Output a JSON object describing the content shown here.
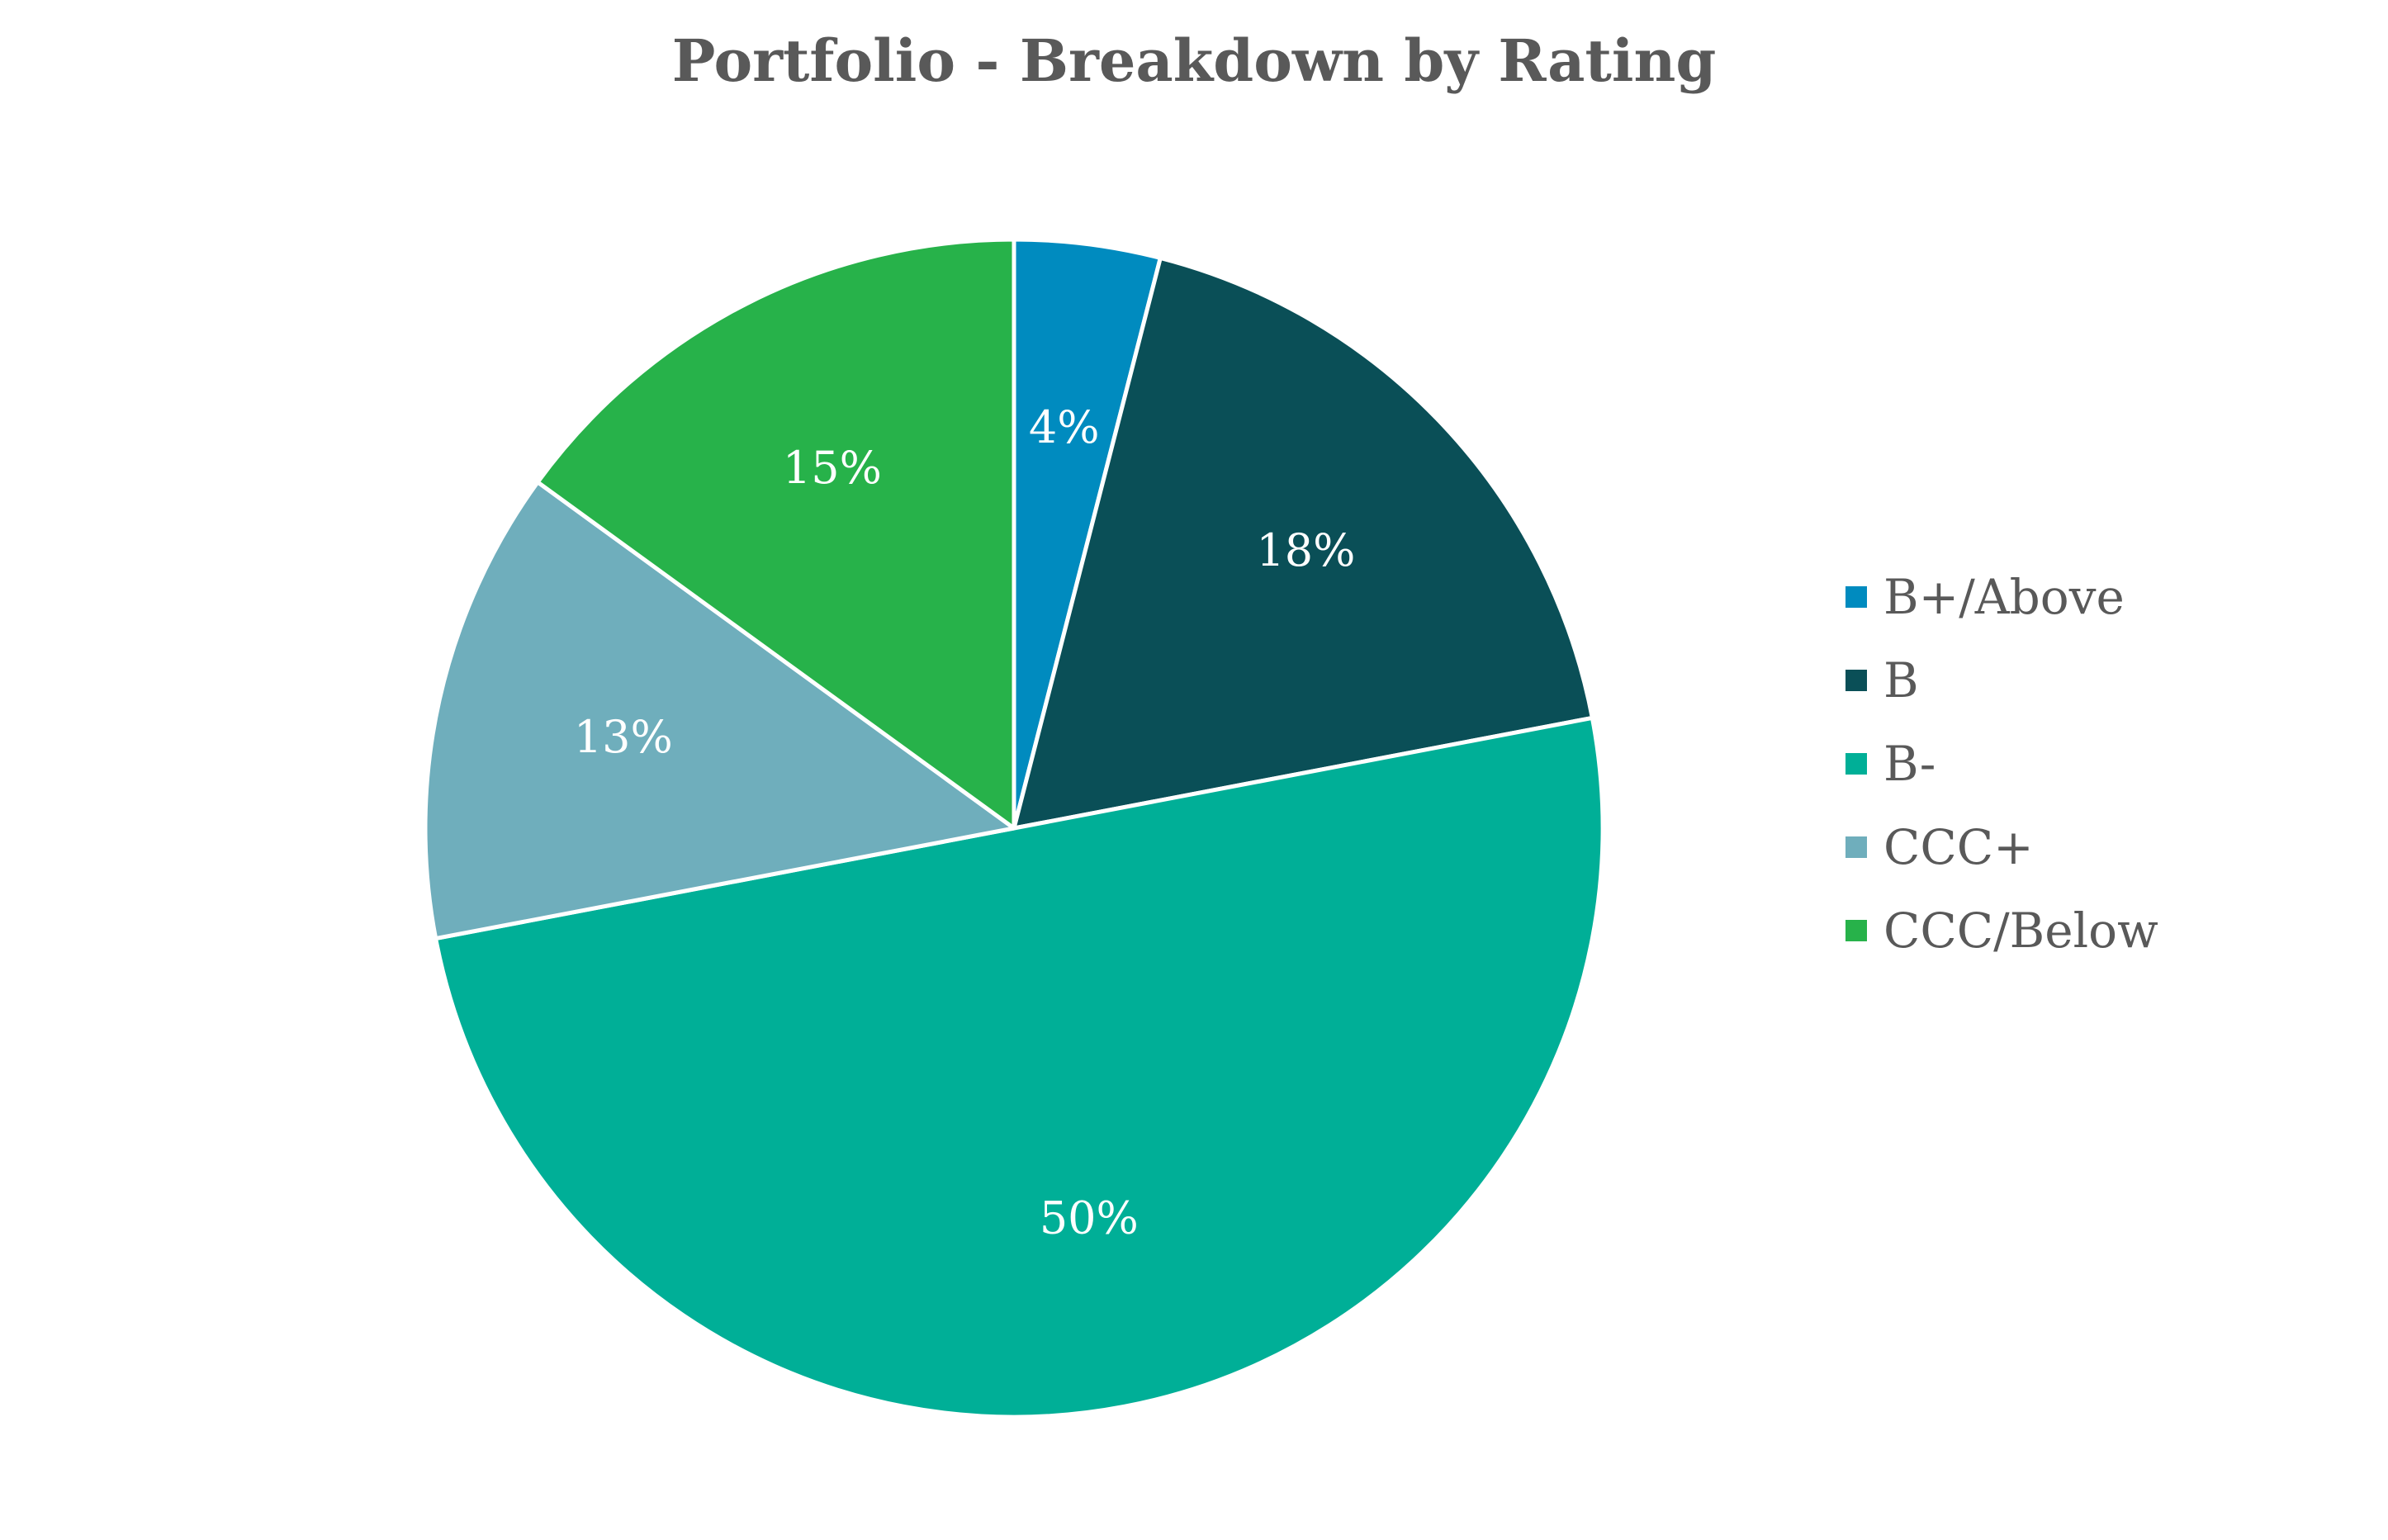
{
  "chart_data": {
    "type": "pie",
    "title": "Portfolio - Breakdown by Rating",
    "categories": [
      "B+/Above",
      "B",
      "B-",
      "CCC+",
      "CCC/Below"
    ],
    "values": [
      4,
      18,
      50,
      13,
      15
    ],
    "labels": [
      "4%",
      "18%",
      "50%",
      "13%",
      "15%"
    ],
    "colors": [
      "#008BBF",
      "#0A4F57",
      "#00AF97",
      "#6FAEBC",
      "#27B24A"
    ],
    "start_angle_deg": 0,
    "direction": "clockwise",
    "legend_position": "right"
  }
}
